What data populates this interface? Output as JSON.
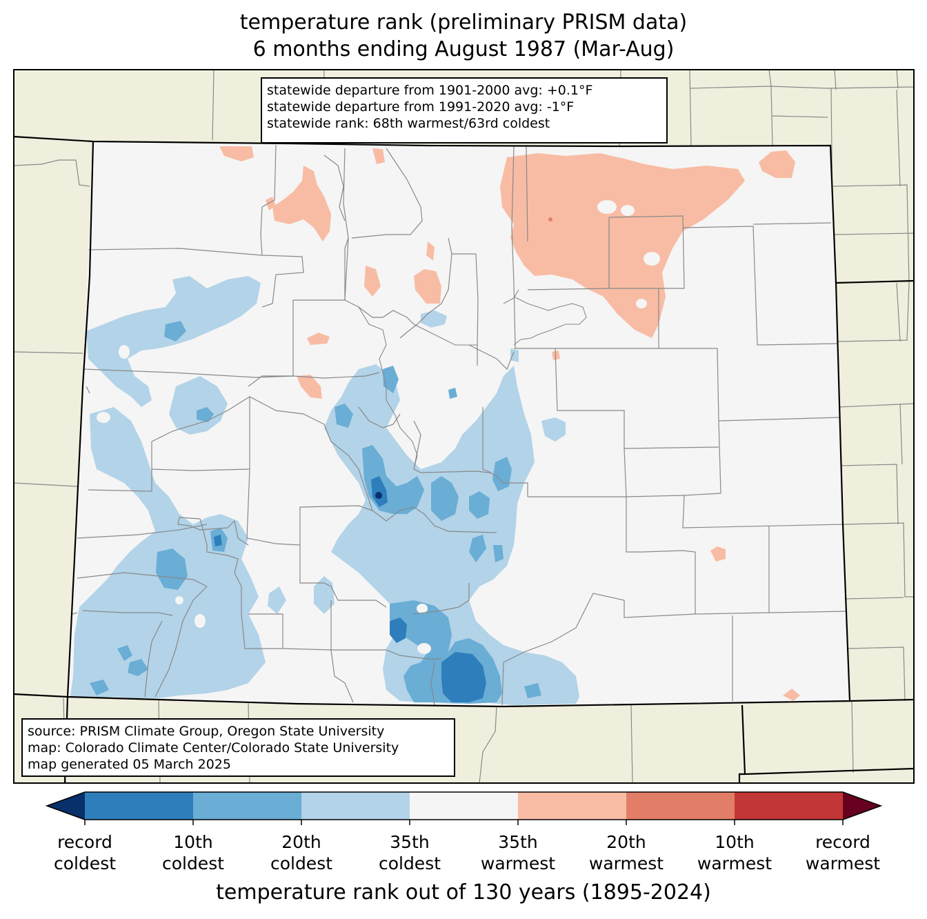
{
  "title": {
    "line1": "temperature rank (preliminary PRISM data)",
    "line2": "6 months ending August 1987 (Mar-Aug)"
  },
  "stats": {
    "line1": "statewide departure from 1901-2000 avg: +0.1°F",
    "line2": "statewide departure from 1991-2020 avg: -1°F",
    "line3": "statewide rank: 68th warmest/63rd coldest"
  },
  "source": {
    "line1": "source: PRISM Climate Group, Oregon State University",
    "line2": "map: Colorado Climate Center/Colorado State University",
    "line3": "map generated 05 March 2025"
  },
  "colorbar": {
    "title": "temperature rank out of 130 years (1895-2024)",
    "bins": [
      {
        "color": "#08306b",
        "class": "record coldest (extend)"
      },
      {
        "color": "#2e7ebc"
      },
      {
        "color": "#6aadd5"
      },
      {
        "color": "#b2d3e8"
      },
      {
        "color": "#f5f5f5"
      },
      {
        "color": "#f8bca4"
      },
      {
        "color": "#e27e67"
      },
      {
        "color": "#c33638"
      },
      {
        "color": "#67001f",
        "class": "record warmest (extend)"
      }
    ],
    "labels": [
      {
        "top": "record",
        "bottom": "coldest"
      },
      {
        "top": "10th",
        "bottom": "coldest"
      },
      {
        "top": "20th",
        "bottom": "coldest"
      },
      {
        "top": "35th",
        "bottom": "coldest"
      },
      {
        "top": "35th",
        "bottom": "warmest"
      },
      {
        "top": "20th",
        "bottom": "warmest"
      },
      {
        "top": "10th",
        "bottom": "warmest"
      },
      {
        "top": "record",
        "bottom": "warmest"
      }
    ]
  },
  "colors": {
    "land": "#f0efde",
    "state_fill": "#f5f5f5",
    "county_line": "#888888",
    "border": "#000000"
  }
}
